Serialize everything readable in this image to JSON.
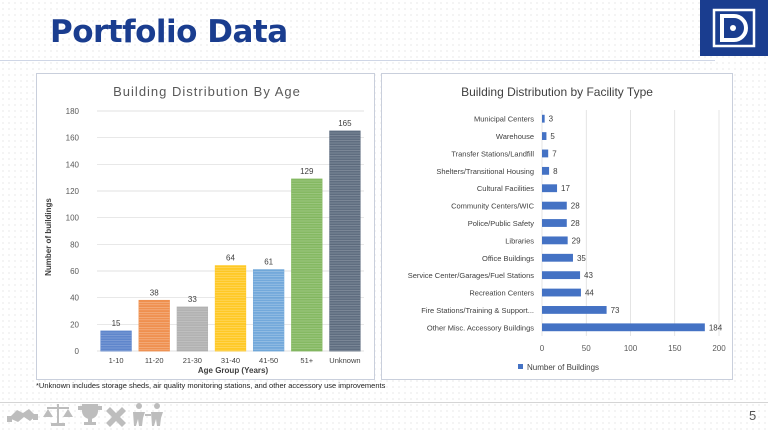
{
  "header": {
    "title": "Portfolio Data",
    "brand_color": "#1a3d8f"
  },
  "logo": {
    "icon": "dc-government-logo-icon"
  },
  "chart_data": [
    {
      "type": "bar",
      "title": "Building Distribution By Age",
      "xlabel": "Age Group (Years)",
      "ylabel": "Number of buildings",
      "categories": [
        "1-10",
        "11-20",
        "21-30",
        "31-40",
        "41-50",
        "51+",
        "Unknown"
      ],
      "values": [
        15,
        38,
        33,
        64,
        61,
        129,
        165
      ],
      "colors": [
        "#4472c4",
        "#ed7d31",
        "#a5a5a5",
        "#ffc000",
        "#5b9bd5",
        "#70ad47",
        "#44546a"
      ],
      "ylim": [
        0,
        180
      ],
      "yticks": [
        0,
        20,
        40,
        60,
        80,
        100,
        120,
        140,
        160,
        180
      ],
      "data_labels": true,
      "grid": true
    },
    {
      "type": "bar",
      "orientation": "horizontal",
      "title": "Building Distribution by Facility Type",
      "categories": [
        "Municipal Centers",
        "Warehouse",
        "Transfer Stations/Landfill",
        "Shelters/Transitional Housing",
        "Cultural Facilities",
        "Community Centers/WIC",
        "Police/Public Safety",
        "Libraries",
        "Office Buildings",
        "Service Center/Garages/Fuel Stations",
        "Recreation Centers",
        "Fire Stations/Training & Support...",
        "Other Misc. Accessory Buildings"
      ],
      "series": [
        {
          "name": "Number of Buildings",
          "values": [
            3,
            5,
            7,
            8,
            17,
            28,
            28,
            29,
            35,
            43,
            44,
            73,
            184
          ]
        }
      ],
      "color": "#4472c4",
      "xlim": [
        0,
        200
      ],
      "xticks": [
        0,
        50,
        100,
        150,
        200
      ],
      "legend": "bottom",
      "data_labels": true,
      "grid": true
    }
  ],
  "footnote": "*Unknown includes storage sheds, air quality monitoring stations, and other accessory use improvements",
  "footer": {
    "icons": [
      "handshake-icon",
      "scales-of-justice-icon",
      "trophy-icon",
      "healthcare-icon",
      "people-icon"
    ],
    "page_number": "5"
  }
}
